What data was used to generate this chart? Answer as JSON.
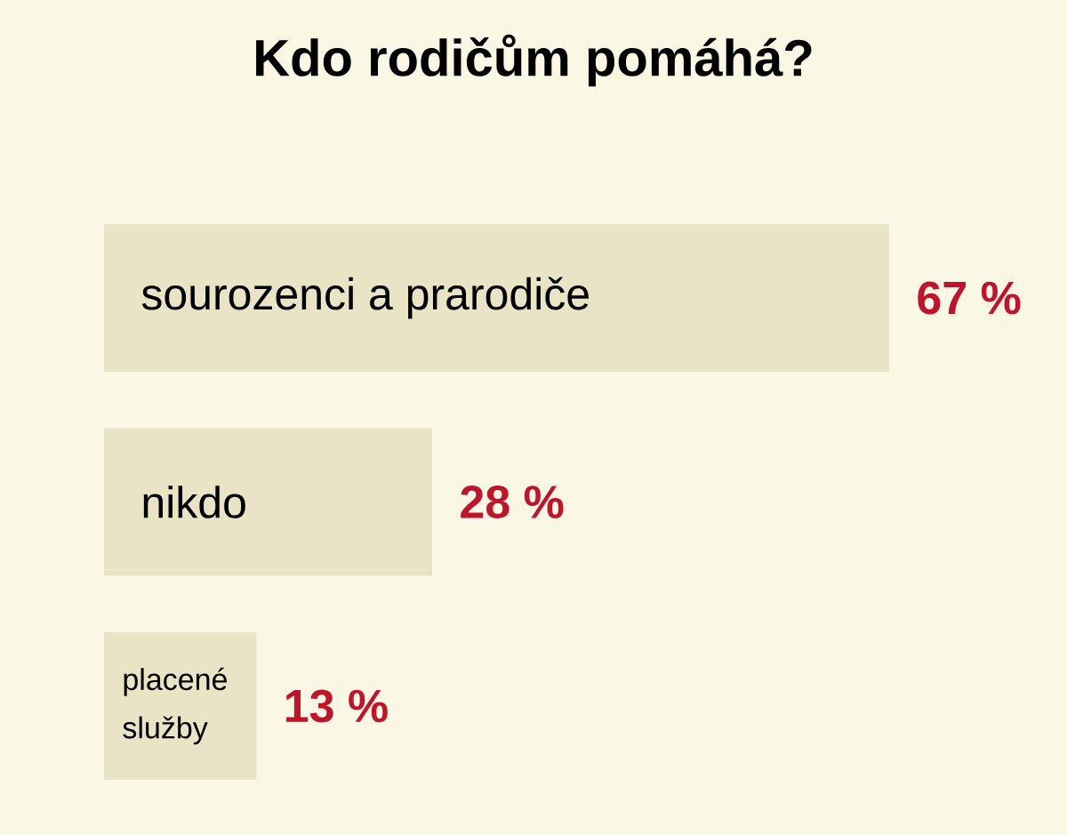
{
  "chart_data": {
    "type": "bar",
    "title": "Kdo rodičům pomáhá?",
    "orientation": "horizontal",
    "categories": [
      "sourozenci a prarodiče",
      "nikdo",
      "placené služby"
    ],
    "values": [
      67,
      28,
      13
    ],
    "value_labels": [
      "67 %",
      "28 %",
      "13 %"
    ],
    "color": "#eae4c6"
  }
}
